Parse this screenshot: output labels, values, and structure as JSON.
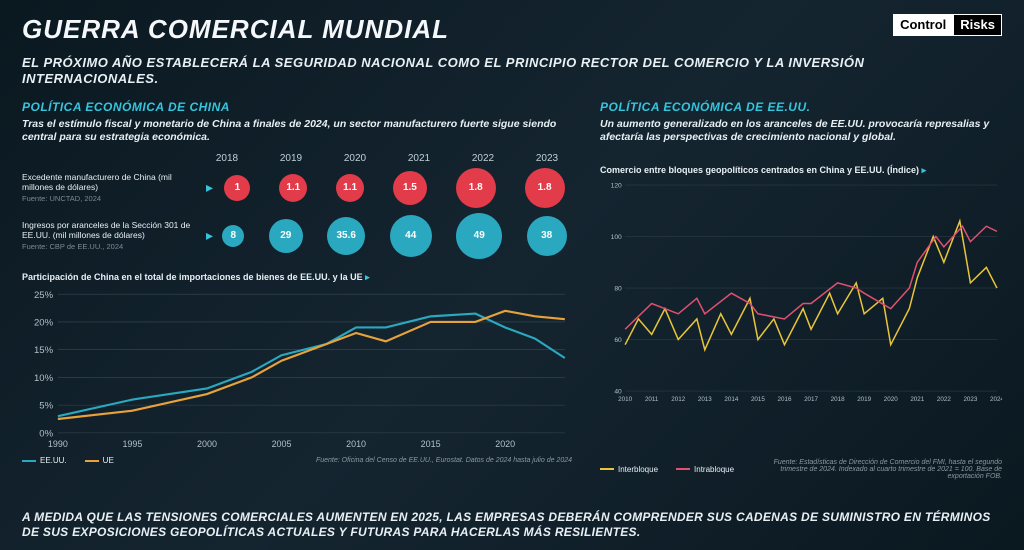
{
  "colors": {
    "accent": "#35c5dd",
    "red": "#e23b4a",
    "teal": "#2aa8c0",
    "yellow": "#e8c53a",
    "pink": "#e05070",
    "grid": "#3a4a54",
    "text": "#e8f0f4",
    "muted": "#8a9aa2"
  },
  "header": {
    "title": "GUERRA COMERCIAL MUNDIAL",
    "logo_a": "Control",
    "logo_b": "Risks",
    "subtitle": "EL PRÓXIMO AÑO ESTABLECERÁ LA SEGURIDAD NACIONAL COMO EL PRINCIPIO RECTOR DEL COMERCIO Y LA INVERSIÓN INTERNACIONALES."
  },
  "left": {
    "heading": "POLÍTICA ECONÓMICA DE CHINA",
    "sub": "Tras el estímulo fiscal y monetario de China a finales de 2024, un sector manufacturero fuerte sigue siendo central para su estrategia económica.",
    "years": [
      "2018",
      "2019",
      "2020",
      "2021",
      "2022",
      "2023"
    ],
    "row1": {
      "label": "Excedente manufacturero de China (mil millones de dólares)",
      "source": "Fuente: UNCTAD, 2024",
      "values": [
        "1",
        "1.1",
        "1.1",
        "1.5",
        "1.8",
        "1.8"
      ],
      "sizes": [
        26,
        28,
        28,
        34,
        40,
        40
      ],
      "color": "#e23b4a"
    },
    "row2": {
      "label": "Ingresos por aranceles de la Sección 301 de EE.UU. (mil millones de dólares)",
      "source": "Fuente: CBP de EE.UU., 2024",
      "values": [
        "8",
        "29",
        "35.6",
        "44",
        "49",
        "38"
      ],
      "sizes": [
        22,
        34,
        38,
        42,
        46,
        40
      ],
      "color": "#2aa8c0"
    },
    "line_chart": {
      "title": "Participación de China en el total de importaciones de bienes de EE.UU. y la UE",
      "type": "line",
      "xlim": [
        1990,
        2024
      ],
      "ylim": [
        0,
        25
      ],
      "ytick_step": 5,
      "x_ticks": [
        1990,
        1995,
        2000,
        2005,
        2010,
        2015,
        2020
      ],
      "series": [
        {
          "name": "EE.UU.",
          "color": "#2aa8c0",
          "data": [
            [
              1990,
              3
            ],
            [
              1995,
              6
            ],
            [
              2000,
              8
            ],
            [
              2003,
              11
            ],
            [
              2005,
              14
            ],
            [
              2008,
              16
            ],
            [
              2010,
              19
            ],
            [
              2012,
              19
            ],
            [
              2015,
              21
            ],
            [
              2018,
              21.5
            ],
            [
              2020,
              19
            ],
            [
              2022,
              17
            ],
            [
              2024,
              13.5
            ]
          ]
        },
        {
          "name": "UE",
          "color": "#e8a23a",
          "data": [
            [
              1990,
              2.5
            ],
            [
              1995,
              4
            ],
            [
              2000,
              7
            ],
            [
              2003,
              10
            ],
            [
              2005,
              13
            ],
            [
              2008,
              16
            ],
            [
              2010,
              18
            ],
            [
              2012,
              16.5
            ],
            [
              2015,
              20
            ],
            [
              2018,
              20
            ],
            [
              2020,
              22
            ],
            [
              2022,
              21
            ],
            [
              2024,
              20.5
            ]
          ]
        }
      ],
      "source": "Fuente: Oficina del Censo de EE.UU., Eurostat. Datos de 2024 hasta julio de 2024"
    }
  },
  "right": {
    "heading": "POLÍTICA ECONÓMICA DE EE.UU.",
    "sub": "Un aumento generalizado en los aranceles de EE.UU. provocaría represalias y afectaría las perspectivas de crecimiento nacional y global.",
    "chart_title": "Comercio entre bloques geopolíticos centrados en China y EE.UU. (Índice)",
    "line_chart": {
      "type": "line",
      "xlim": [
        2010,
        2024
      ],
      "ylim": [
        40,
        120
      ],
      "ytick_step": 20,
      "x_ticks": [
        2010,
        2011,
        2012,
        2013,
        2014,
        2015,
        2016,
        2017,
        2018,
        2019,
        2020,
        2021,
        2022,
        2023,
        2024
      ],
      "series": [
        {
          "name": "Interbloque",
          "color": "#e8c53a",
          "data": [
            [
              2010,
              58
            ],
            [
              2010.5,
              68
            ],
            [
              2011,
              62
            ],
            [
              2011.5,
              72
            ],
            [
              2012,
              60
            ],
            [
              2012.7,
              68
            ],
            [
              2013,
              56
            ],
            [
              2013.6,
              70
            ],
            [
              2014,
              62
            ],
            [
              2014.7,
              76
            ],
            [
              2015,
              60
            ],
            [
              2015.6,
              68
            ],
            [
              2016,
              58
            ],
            [
              2016.7,
              72
            ],
            [
              2017,
              64
            ],
            [
              2017.7,
              78
            ],
            [
              2018,
              70
            ],
            [
              2018.7,
              82
            ],
            [
              2019,
              70
            ],
            [
              2019.7,
              76
            ],
            [
              2020,
              58
            ],
            [
              2020.7,
              72
            ],
            [
              2021,
              84
            ],
            [
              2021.6,
              100
            ],
            [
              2022,
              90
            ],
            [
              2022.6,
              106
            ],
            [
              2023,
              82
            ],
            [
              2023.6,
              88
            ],
            [
              2024,
              80
            ]
          ]
        },
        {
          "name": "Intrabloque",
          "color": "#e05070",
          "data": [
            [
              2010,
              64
            ],
            [
              2011,
              74
            ],
            [
              2012,
              70
            ],
            [
              2012.7,
              76
            ],
            [
              2013,
              70
            ],
            [
              2014,
              78
            ],
            [
              2014.7,
              74
            ],
            [
              2015,
              70
            ],
            [
              2016,
              68
            ],
            [
              2016.7,
              74
            ],
            [
              2017,
              74
            ],
            [
              2018,
              82
            ],
            [
              2018.7,
              80
            ],
            [
              2019,
              78
            ],
            [
              2020,
              72
            ],
            [
              2020.7,
              80
            ],
            [
              2021,
              90
            ],
            [
              2021.7,
              100
            ],
            [
              2022,
              96
            ],
            [
              2022.7,
              104
            ],
            [
              2023,
              98
            ],
            [
              2023.6,
              104
            ],
            [
              2024,
              102
            ]
          ]
        }
      ],
      "legend": [
        "Interbloque",
        "Intrabloque"
      ],
      "source": "Fuente: Estadísticas de Dirección de Comercio del FMI, hasta el segundo trimestre de 2024. Indexado al cuarto trimestre de 2021 = 100. Base de exportación FOB."
    }
  },
  "footer": "A MEDIDA QUE LAS TENSIONES COMERCIALES AUMENTEN EN 2025, LAS EMPRESAS DEBERÁN COMPRENDER SUS CADENAS DE SUMINISTRO EN TÉRMINOS DE SUS EXPOSICIONES GEOPOLÍTICAS ACTUALES Y FUTURAS PARA HACERLAS MÁS RESILIENTES."
}
